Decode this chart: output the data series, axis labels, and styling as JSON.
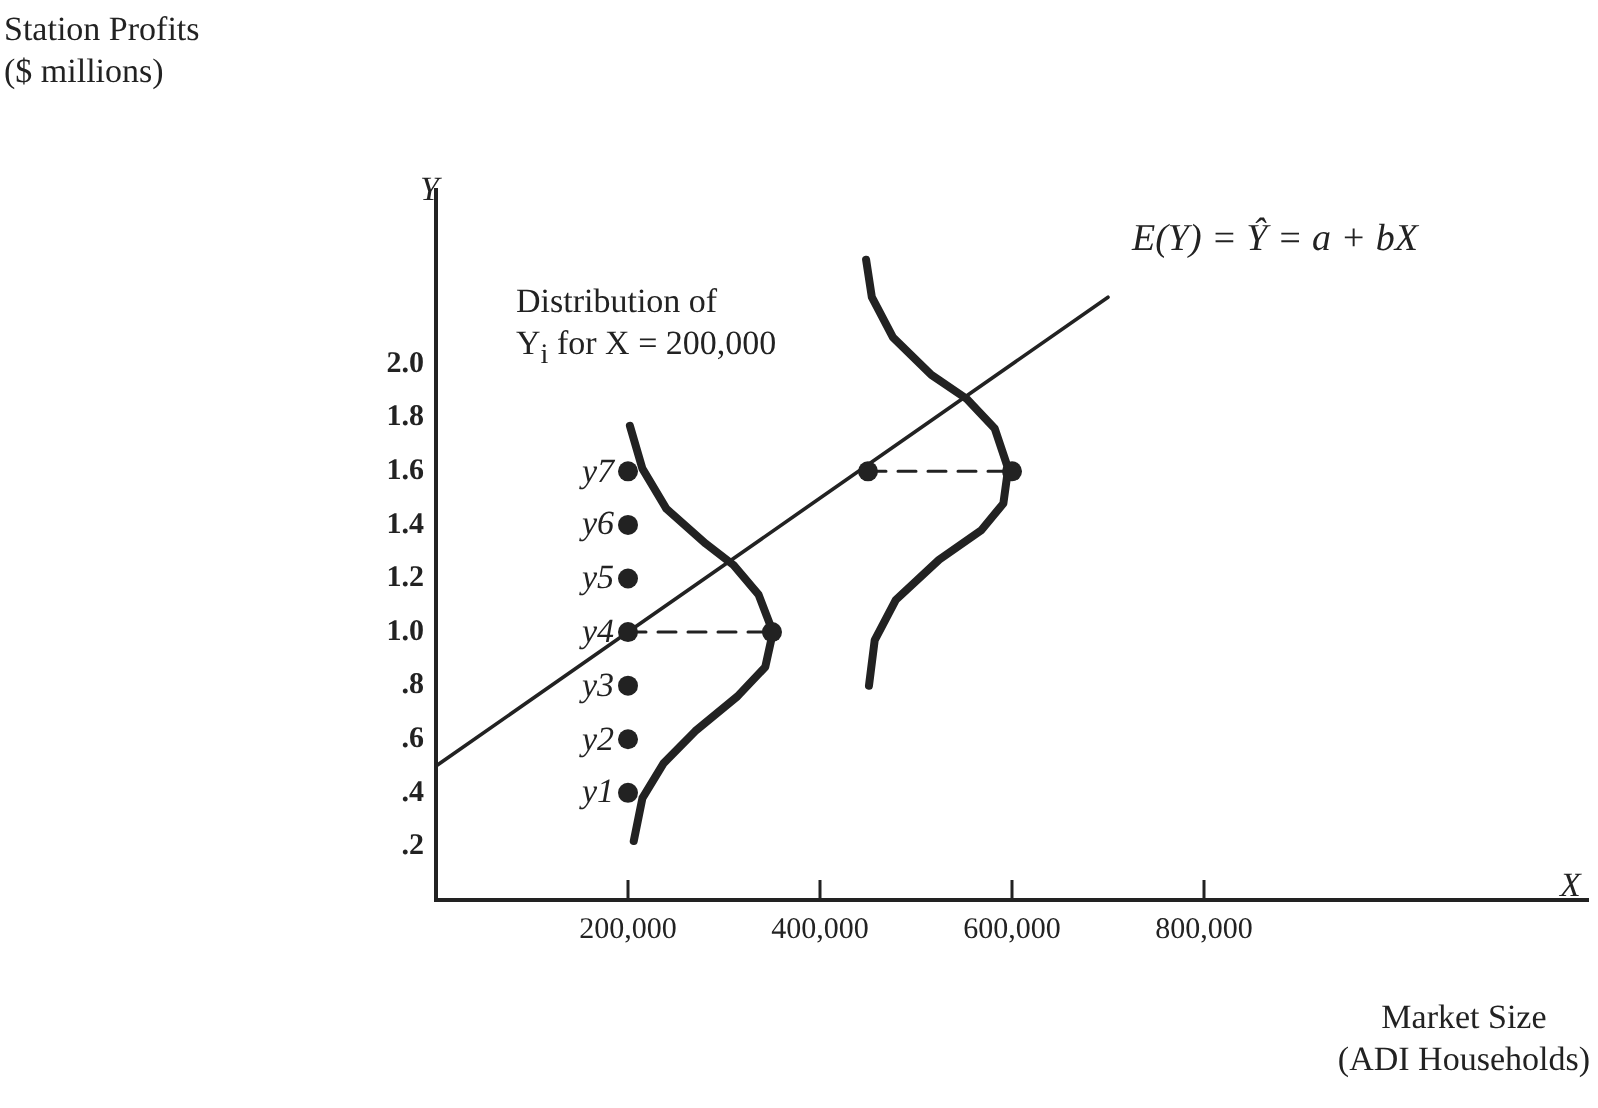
{
  "chart_data": {
    "type": "line",
    "xlabel": "Market Size\n(ADI Households)",
    "xlim": [
      0,
      1200000
    ],
    "xticks": [
      {
        "value": 200000,
        "label": "200,000"
      },
      {
        "value": 400000,
        "label": "400,000"
      },
      {
        "value": 600000,
        "label": "600,000"
      },
      {
        "value": 800000,
        "label": "800,000"
      }
    ],
    "ylim": [
      0,
      2.65
    ],
    "yticks": [
      {
        "value": 0.2,
        "label": ".2"
      },
      {
        "value": 0.4,
        "label": ".4"
      },
      {
        "value": 0.6,
        "label": ".6"
      },
      {
        "value": 0.8,
        "label": ".8"
      },
      {
        "value": 1.0,
        "label": "1.0"
      },
      {
        "value": 1.2,
        "label": "1.2"
      },
      {
        "value": 1.4,
        "label": "1.4"
      },
      {
        "value": 1.6,
        "label": "1.6"
      },
      {
        "value": 1.8,
        "label": "1.8"
      },
      {
        "value": 2.0,
        "label": "2.0"
      }
    ],
    "legend": false,
    "series": [
      {
        "name": "E(Y) = Ŷ = a + bX",
        "color": "#222222",
        "marker": "none",
        "line_style": "solid",
        "x": [
          0,
          200000,
          700000
        ],
        "values": [
          0.5,
          1.0,
          2.25
        ]
      },
      {
        "color": "#222222",
        "marker": "none",
        "line_style": "solid",
        "x": [
          202000,
          215000,
          240000,
          281000,
          310000,
          336000,
          351000,
          343000,
          314000,
          270000,
          237000,
          215000,
          206000
        ],
        "values": [
          1.77,
          1.61,
          1.46,
          1.33,
          1.25,
          1.14,
          1.0,
          0.87,
          0.76,
          0.63,
          0.51,
          0.38,
          0.22
        ]
      },
      {
        "color": "#222222",
        "marker": "none",
        "line_style": "solid",
        "x": [
          448000,
          454000,
          476000,
          516000,
          553000,
          582000,
          596000,
          591000,
          568000,
          524000,
          479000,
          457000,
          451000
        ],
        "values": [
          2.39,
          2.25,
          2.1,
          1.96,
          1.87,
          1.76,
          1.61,
          1.48,
          1.38,
          1.27,
          1.12,
          0.97,
          0.8
        ]
      },
      {
        "color": "#222222",
        "marker": "none",
        "line_style": "dashed",
        "x": [
          200000,
          350000
        ],
        "values": [
          1.0,
          1.0
        ]
      },
      {
        "color": "#222222",
        "marker": "none",
        "line_style": "dashed",
        "x": [
          450000,
          600000
        ],
        "values": [
          1.6,
          1.6
        ]
      },
      {
        "type": "scatter",
        "color": "#222222",
        "marker": "circle",
        "x": [
          200000,
          200000,
          200000,
          200000,
          200000,
          200000
        ],
        "values": [
          0.4,
          0.6,
          0.8,
          1.2,
          1.4,
          1.6
        ],
        "value_labels": [
          "y1",
          "y2",
          "y3",
          "y5",
          "y6",
          "y7"
        ]
      },
      {
        "type": "scatter",
        "color": "#222222",
        "marker": "circle",
        "x": [
          200000,
          350000,
          450000,
          600000
        ],
        "values": [
          1.0,
          1.0,
          1.6,
          1.6
        ],
        "value_labels": [
          "y4",
          null,
          null,
          null
        ]
      }
    ],
    "annotations": [
      "Station Profits\n($ millions)",
      "Distribution of\nY$_{i}$ for X = 200,000",
      "Y",
      "X"
    ]
  }
}
